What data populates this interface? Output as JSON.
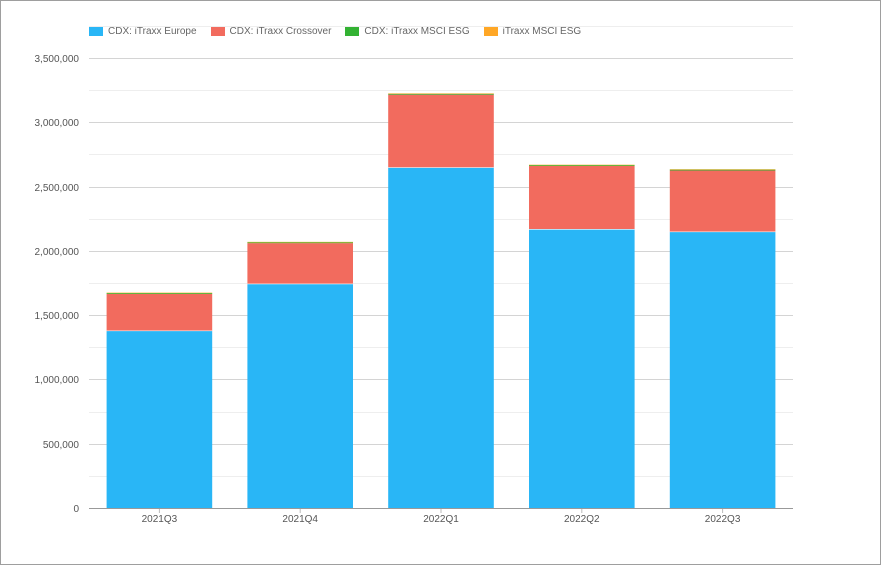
{
  "chart_data": {
    "type": "bar",
    "stacked": true,
    "categories": [
      "2021Q3",
      "2021Q4",
      "2022Q1",
      "2022Q2",
      "2022Q3"
    ],
    "series": [
      {
        "name": "CDX: iTraxx Europe",
        "color": "#29b6f6",
        "values": [
          1380000,
          1745000,
          2650000,
          2170000,
          2150000
        ]
      },
      {
        "name": "CDX: iTraxx Crossover",
        "color": "#f26b5e",
        "values": [
          285000,
          315000,
          565000,
          490000,
          475000
        ]
      },
      {
        "name": "CDX: iTraxx MSCI ESG",
        "color": "#33b233",
        "values": [
          7000,
          7000,
          7000,
          7000,
          7000
        ]
      },
      {
        "name": "iTraxx MSCI ESG",
        "color": "#ffa726",
        "values": [
          3000,
          3000,
          3000,
          3000,
          3000
        ]
      }
    ],
    "yticks": [
      "3,500,000",
      "3,000,000",
      "2,500,000",
      "2,000,000",
      "1,500,000",
      "1,000,000",
      "500,000",
      "0"
    ],
    "ylim": [
      0,
      3500000
    ],
    "legend_position": "top-left",
    "grid": true
  }
}
